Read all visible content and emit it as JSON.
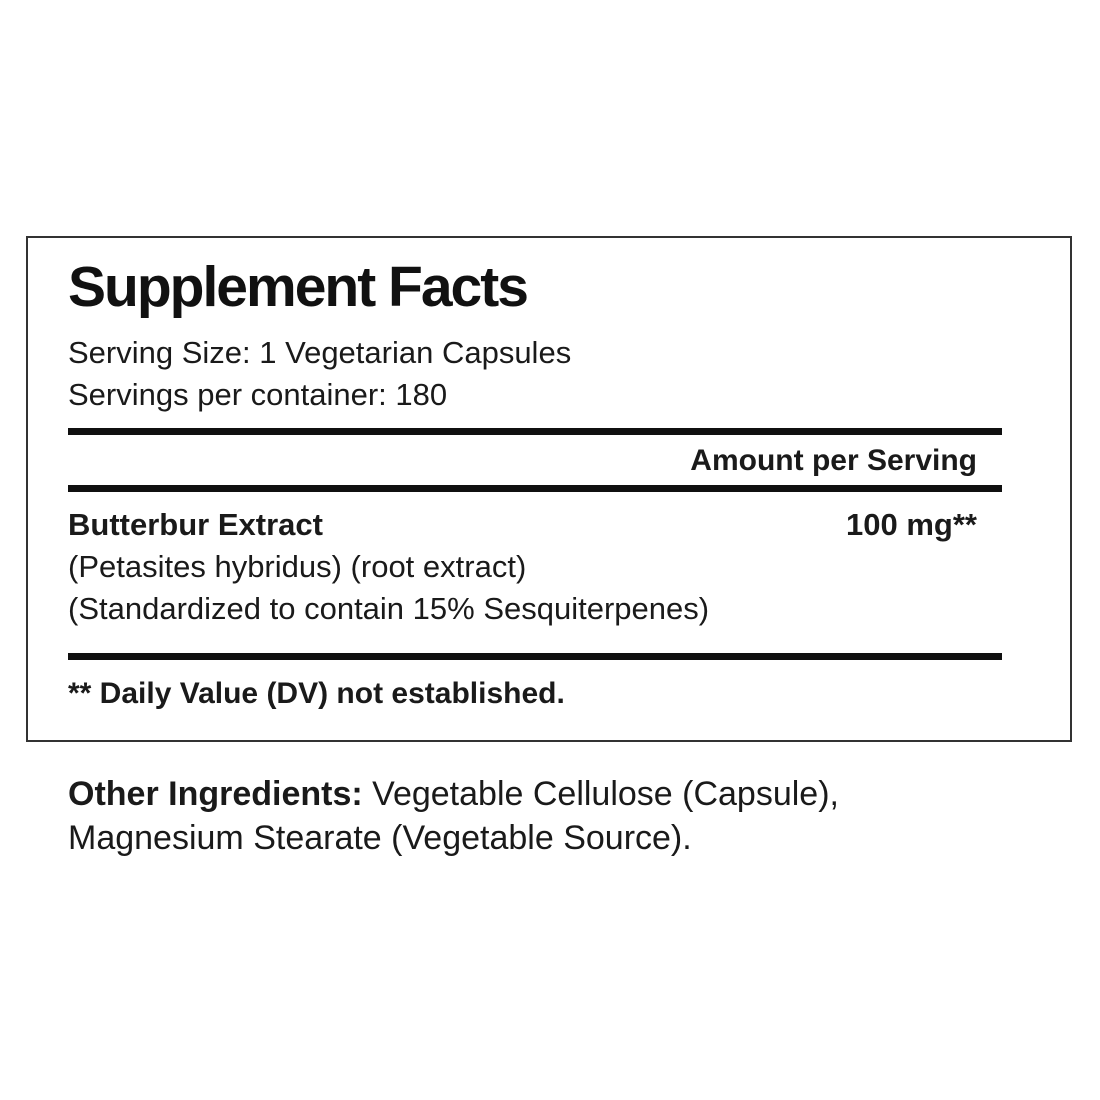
{
  "panel": {
    "title": "Supplement Facts",
    "serving_size_line": "Serving Size: 1 Vegetarian Capsules",
    "servings_line": "Servings per container: 180",
    "amount_header": "Amount per Serving",
    "ingredient_name": "Butterbur Extract",
    "ingredient_amount": "100 mg**",
    "ingredient_detail_1": "(Petasites hybridus) (root extract)",
    "ingredient_detail_2": "(Standardized to contain 15% Sesquiterpenes)",
    "footnote": "** Daily Value (DV) not established."
  },
  "other_ingredients": {
    "label": "Other Ingredients:",
    "line1_rest": " Vegetable Cellulose (Capsule),",
    "line2": "Magnesium Stearate (Vegetable Source)."
  },
  "colors": {
    "text": "#1a1a1a",
    "bar": "#101010",
    "border": "#333333",
    "background": "#ffffff"
  }
}
